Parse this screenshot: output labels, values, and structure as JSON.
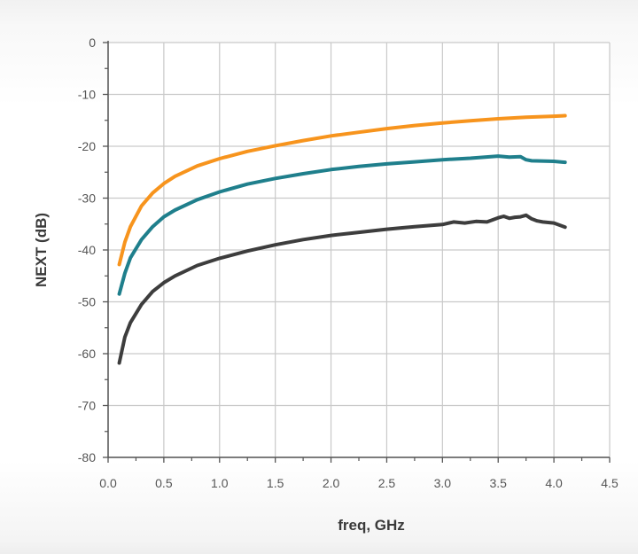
{
  "chart_data": {
    "type": "line",
    "xlabel": "freq, GHz",
    "ylabel": "NEXT (dB)",
    "xlim": [
      0.0,
      4.5
    ],
    "ylim": [
      -80,
      0
    ],
    "grid": true,
    "x_ticks": [
      "0.0",
      "0.5",
      "1.0",
      "1.5",
      "2.0",
      "2.5",
      "3.0",
      "3.5",
      "4.0",
      "4.5"
    ],
    "y_ticks": [
      "0",
      "-10",
      "-20",
      "-30",
      "-40",
      "-50",
      "-60",
      "-70",
      "-80"
    ],
    "series": [
      {
        "color": "#f7941d",
        "x": [
          0.1,
          0.15,
          0.2,
          0.3,
          0.4,
          0.5,
          0.6,
          0.8,
          1.0,
          1.25,
          1.5,
          1.75,
          2.0,
          2.25,
          2.5,
          2.75,
          3.0,
          3.25,
          3.5,
          3.75,
          4.0,
          4.1
        ],
        "y": [
          -42.8,
          -38.5,
          -35.5,
          -31.5,
          -29.0,
          -27.2,
          -25.8,
          -23.8,
          -22.4,
          -21.0,
          -19.9,
          -18.9,
          -18.0,
          -17.3,
          -16.6,
          -16.0,
          -15.5,
          -15.1,
          -14.7,
          -14.4,
          -14.2,
          -14.1
        ]
      },
      {
        "color": "#1f7f8c",
        "x": [
          0.1,
          0.15,
          0.2,
          0.3,
          0.4,
          0.5,
          0.6,
          0.8,
          1.0,
          1.25,
          1.5,
          1.75,
          2.0,
          2.25,
          2.5,
          2.75,
          3.0,
          3.25,
          3.5,
          3.6,
          3.7,
          3.75,
          3.8,
          4.0,
          4.1
        ],
        "y": [
          -48.5,
          -44.5,
          -41.5,
          -38.0,
          -35.5,
          -33.6,
          -32.3,
          -30.3,
          -28.8,
          -27.3,
          -26.2,
          -25.3,
          -24.5,
          -23.9,
          -23.4,
          -23.0,
          -22.6,
          -22.3,
          -21.9,
          -22.1,
          -22.0,
          -22.6,
          -22.8,
          -22.9,
          -23.1
        ]
      },
      {
        "color": "#3d3d3d",
        "x": [
          0.1,
          0.15,
          0.2,
          0.3,
          0.4,
          0.5,
          0.6,
          0.8,
          1.0,
          1.25,
          1.5,
          1.75,
          2.0,
          2.25,
          2.5,
          2.75,
          3.0,
          3.1,
          3.2,
          3.3,
          3.4,
          3.5,
          3.55,
          3.6,
          3.65,
          3.7,
          3.75,
          3.8,
          3.85,
          3.9,
          4.0,
          4.1
        ],
        "y": [
          -61.8,
          -56.8,
          -54.0,
          -50.5,
          -48.0,
          -46.3,
          -45.0,
          -43.0,
          -41.6,
          -40.2,
          -39.0,
          -38.0,
          -37.2,
          -36.6,
          -36.0,
          -35.5,
          -35.1,
          -34.6,
          -34.8,
          -34.5,
          -34.6,
          -33.8,
          -33.5,
          -33.9,
          -33.7,
          -33.6,
          -33.3,
          -34.0,
          -34.4,
          -34.6,
          -34.8,
          -35.6
        ]
      }
    ]
  }
}
